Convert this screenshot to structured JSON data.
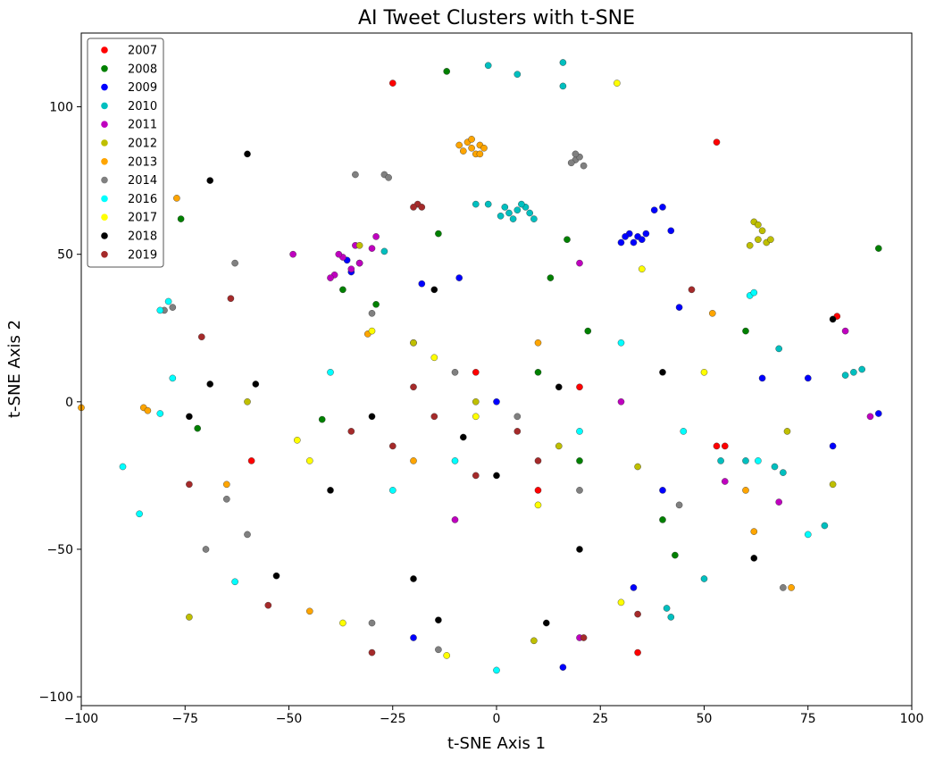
{
  "chart_data": {
    "type": "scatter",
    "title": "AI Tweet Clusters with t-SNE",
    "xlabel": "t-SNE Axis 1",
    "ylabel": "t-SNE Axis 2",
    "xlim": [
      -100,
      100
    ],
    "ylim": [
      -103,
      125
    ],
    "xticks": [
      -100,
      -75,
      -50,
      -25,
      0,
      25,
      50,
      75,
      100
    ],
    "yticks": [
      -100,
      -50,
      0,
      50,
      100
    ],
    "xtick_labels": [
      "−100",
      "−75",
      "−50",
      "−25",
      "0",
      "25",
      "50",
      "75",
      "100"
    ],
    "ytick_labels": [
      "−100",
      "−50",
      "0",
      "50",
      "100"
    ],
    "grid": false,
    "legend_position": "top-left",
    "series": [
      {
        "name": "2007",
        "color": "#ff0000",
        "points": [
          [
            -25,
            108
          ],
          [
            53,
            88
          ],
          [
            34,
            -85
          ],
          [
            53,
            -15
          ],
          [
            55,
            -15
          ],
          [
            82,
            29
          ],
          [
            -59,
            -20
          ],
          [
            -20,
            20
          ],
          [
            10,
            -30
          ],
          [
            20,
            5
          ],
          [
            -5,
            10
          ]
        ]
      },
      {
        "name": "2008",
        "color": "#008000",
        "points": [
          [
            -12,
            112
          ],
          [
            -76,
            62
          ],
          [
            92,
            52
          ],
          [
            -14,
            57
          ],
          [
            17,
            55
          ],
          [
            13,
            42
          ],
          [
            22,
            24
          ],
          [
            60,
            24
          ],
          [
            -29,
            33
          ],
          [
            -37,
            38
          ],
          [
            -42,
            -6
          ],
          [
            -72,
            -9
          ],
          [
            40,
            -40
          ],
          [
            43,
            -52
          ],
          [
            20,
            -20
          ],
          [
            10,
            10
          ]
        ]
      },
      {
        "name": "2009",
        "color": "#0000ff",
        "points": [
          [
            32,
            57
          ],
          [
            34,
            56
          ],
          [
            35,
            55
          ],
          [
            33,
            54
          ],
          [
            36,
            57
          ],
          [
            31,
            56
          ],
          [
            30,
            54
          ],
          [
            38,
            65
          ],
          [
            40,
            66
          ],
          [
            42,
            58
          ],
          [
            -33,
            47
          ],
          [
            -35,
            44
          ],
          [
            -36,
            48
          ],
          [
            -9,
            42
          ],
          [
            -18,
            40
          ],
          [
            64,
            8
          ],
          [
            75,
            8
          ],
          [
            81,
            -15
          ],
          [
            92,
            -4
          ],
          [
            16,
            -90
          ],
          [
            33,
            -63
          ],
          [
            -20,
            -80
          ],
          [
            44,
            32
          ],
          [
            40,
            -30
          ],
          [
            0,
            0
          ]
        ]
      },
      {
        "name": "2010",
        "color": "#00bfbf",
        "points": [
          [
            5,
            65
          ],
          [
            3,
            64
          ],
          [
            7,
            66
          ],
          [
            4,
            62
          ],
          [
            8,
            64
          ],
          [
            6,
            67
          ],
          [
            2,
            66
          ],
          [
            9,
            62
          ],
          [
            1,
            63
          ],
          [
            -5,
            67
          ],
          [
            -2,
            67
          ],
          [
            16,
            115
          ],
          [
            5,
            111
          ],
          [
            16,
            107
          ],
          [
            -2,
            114
          ],
          [
            60,
            -20
          ],
          [
            67,
            -22
          ],
          [
            69,
            -24
          ],
          [
            79,
            -42
          ],
          [
            41,
            -70
          ],
          [
            42,
            -73
          ],
          [
            86,
            10
          ],
          [
            88,
            11
          ],
          [
            84,
            9
          ],
          [
            50,
            -60
          ],
          [
            -27,
            51
          ],
          [
            68,
            18
          ],
          [
            54,
            -20
          ]
        ]
      },
      {
        "name": "2011",
        "color": "#bf00bf",
        "points": [
          [
            -35,
            45
          ],
          [
            -33,
            47
          ],
          [
            -37,
            49
          ],
          [
            -39,
            43
          ],
          [
            -34,
            53
          ],
          [
            -40,
            42
          ],
          [
            -38,
            50
          ],
          [
            -30,
            52
          ],
          [
            -29,
            56
          ],
          [
            -49,
            50
          ],
          [
            20,
            47
          ],
          [
            68,
            -34
          ],
          [
            84,
            24
          ],
          [
            90,
            -5
          ],
          [
            20,
            -80
          ],
          [
            55,
            -27
          ],
          [
            -10,
            -40
          ],
          [
            30,
            0
          ]
        ]
      },
      {
        "name": "2012",
        "color": "#bfbf00",
        "points": [
          [
            62,
            61
          ],
          [
            63,
            55
          ],
          [
            65,
            54
          ],
          [
            61,
            53
          ],
          [
            64,
            58
          ],
          [
            63,
            60
          ],
          [
            66,
            55
          ],
          [
            -74,
            -73
          ],
          [
            81,
            -28
          ],
          [
            9,
            -81
          ],
          [
            -20,
            20
          ],
          [
            -60,
            0
          ],
          [
            70,
            -10
          ],
          [
            -33,
            53
          ],
          [
            -5,
            0
          ],
          [
            15,
            -15
          ],
          [
            34,
            -22
          ]
        ]
      },
      {
        "name": "2013",
        "color": "#ffa500",
        "points": [
          [
            -6,
            86
          ],
          [
            -7,
            88
          ],
          [
            -5,
            84
          ],
          [
            -4,
            87
          ],
          [
            -8,
            85
          ],
          [
            -3,
            86
          ],
          [
            -6,
            89
          ],
          [
            -9,
            87
          ],
          [
            -4,
            84
          ],
          [
            -77,
            69
          ],
          [
            -100,
            -2
          ],
          [
            -85,
            -2
          ],
          [
            -84,
            -3
          ],
          [
            71,
            -63
          ],
          [
            62,
            -44
          ],
          [
            -45,
            -71
          ],
          [
            -65,
            -28
          ],
          [
            52,
            30
          ],
          [
            60,
            -30
          ],
          [
            -20,
            -20
          ],
          [
            10,
            20
          ],
          [
            -31,
            23
          ]
        ]
      },
      {
        "name": "2014",
        "color": "#808080",
        "points": [
          [
            19,
            82
          ],
          [
            20,
            83
          ],
          [
            18,
            81
          ],
          [
            21,
            80
          ],
          [
            19,
            84
          ],
          [
            -27,
            77
          ],
          [
            -34,
            77
          ],
          [
            -26,
            76
          ],
          [
            -78,
            32
          ],
          [
            -80,
            31
          ],
          [
            -63,
            47
          ],
          [
            -70,
            -50
          ],
          [
            -65,
            -33
          ],
          [
            -14,
            -84
          ],
          [
            69,
            -63
          ],
          [
            -60,
            -45
          ],
          [
            -30,
            -75
          ],
          [
            44,
            -35
          ],
          [
            -30,
            30
          ],
          [
            20,
            -30
          ],
          [
            -10,
            10
          ],
          [
            5,
            -5
          ]
        ]
      },
      {
        "name": "2016",
        "color": "#00ffff",
        "points": [
          [
            61,
            36
          ],
          [
            62,
            37
          ],
          [
            -81,
            31
          ],
          [
            -79,
            34
          ],
          [
            -78,
            8
          ],
          [
            -81,
            -4
          ],
          [
            -86,
            -38
          ],
          [
            -63,
            -61
          ],
          [
            -90,
            -22
          ],
          [
            0,
            -91
          ],
          [
            75,
            -45
          ],
          [
            63,
            -20
          ],
          [
            -40,
            10
          ],
          [
            20,
            -10
          ],
          [
            -25,
            -30
          ],
          [
            30,
            20
          ],
          [
            -10,
            -20
          ],
          [
            45,
            -10
          ]
        ]
      },
      {
        "name": "2017",
        "color": "#ffff00",
        "points": [
          [
            29,
            108
          ],
          [
            -12,
            -86
          ],
          [
            -37,
            -75
          ],
          [
            -48,
            -13
          ],
          [
            -30,
            24
          ],
          [
            30,
            -68
          ],
          [
            35,
            45
          ],
          [
            -5,
            -5
          ],
          [
            -15,
            15
          ],
          [
            10,
            -35
          ],
          [
            50,
            10
          ],
          [
            -45,
            -20
          ]
        ]
      },
      {
        "name": "2018",
        "color": "#000000",
        "points": [
          [
            -60,
            84
          ],
          [
            -69,
            75
          ],
          [
            -74,
            -5
          ],
          [
            -69,
            6
          ],
          [
            -58,
            6
          ],
          [
            -53,
            -59
          ],
          [
            -14,
            -74
          ],
          [
            12,
            -75
          ],
          [
            62,
            -53
          ],
          [
            -15,
            38
          ],
          [
            81,
            28
          ],
          [
            -20,
            -60
          ],
          [
            20,
            -50
          ],
          [
            -40,
            -30
          ],
          [
            40,
            10
          ],
          [
            -8,
            -12
          ],
          [
            15,
            5
          ],
          [
            -30,
            -5
          ],
          [
            0,
            -25
          ]
        ]
      },
      {
        "name": "2019",
        "color": "#a52a2a",
        "points": [
          [
            -19,
            67
          ],
          [
            -18,
            66
          ],
          [
            -20,
            66
          ],
          [
            -30,
            -85
          ],
          [
            -71,
            22
          ],
          [
            -74,
            -28
          ],
          [
            -55,
            -69
          ],
          [
            -64,
            35
          ],
          [
            21,
            -80
          ],
          [
            47,
            38
          ],
          [
            34,
            -72
          ],
          [
            -25,
            -15
          ],
          [
            -15,
            -5
          ],
          [
            -5,
            -25
          ],
          [
            5,
            -10
          ],
          [
            -35,
            -10
          ],
          [
            10,
            -20
          ],
          [
            -20,
            5
          ]
        ]
      }
    ]
  }
}
